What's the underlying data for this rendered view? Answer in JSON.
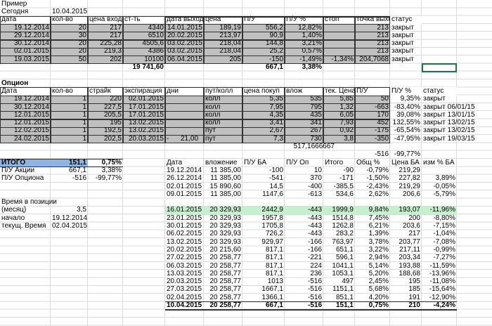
{
  "sheet": {
    "title": "Пример",
    "today_label": "Сегодня",
    "today": "10.04.2015",
    "stocks": {
      "headers": [
        "дата",
        "кол-во",
        "цена входа",
        "ст-ть",
        "дата выхода",
        "цена",
        "П/У",
        "П/У %",
        "стоп",
        "точка выхода",
        "статус"
      ],
      "rows": [
        [
          "19.12.2014",
          "20",
          "217",
          "4340",
          "14.01.2015",
          "189,19",
          "556,2",
          "12,82%",
          null,
          "213",
          "закрыт"
        ],
        [
          "29.12.2014",
          "30",
          "217",
          "6510",
          "20.02.2015",
          "213,97",
          "90,9",
          "1,40%",
          null,
          "213",
          "закрыт"
        ],
        [
          "30.12.2014",
          "20",
          "225,28",
          "4505,6",
          "03.02.2015",
          "218,04",
          "144,8",
          "3,21%",
          null,
          "213",
          "закрыт"
        ],
        [
          "02.01.2015",
          "20",
          "219,3",
          "4386",
          "03.02.2015",
          "218,04",
          "25,2",
          "0,57%",
          null,
          "213",
          "закрыт"
        ],
        [
          "19.03.2015",
          "50",
          "202",
          "10100",
          "06.04.2015",
          "205",
          "-150",
          "-1,49%",
          "-1,34%",
          "204,7068",
          "закрыт"
        ]
      ],
      "totals": {
        "cost": "19 741,60",
        "pl": "667,1",
        "pl_pct": "3,38%"
      }
    },
    "options": {
      "title": "Опцион",
      "headers": [
        "Дата",
        "кол-во",
        "страйк",
        "экспирация",
        "дни",
        "пут/колл",
        "цена покуп",
        "влож",
        "тек. Цена",
        "П/У",
        "П/У %",
        "статус"
      ],
      "rows": [
        [
          "19.12.2014",
          "1",
          "220",
          "02.01.2015",
          null,
          "колл",
          "5,35",
          "535",
          "5,85",
          "50",
          "9,35%",
          "закрыт"
        ],
        [
          "30.12.2014",
          "1",
          "227,5",
          "17.01.2015",
          null,
          "колл",
          "7,95",
          "795",
          "1,32",
          "-663",
          "-83,40%",
          "закрыт 06/01/15"
        ],
        [
          "12.01.2015",
          "1",
          "205,5",
          "17.01.2015",
          null,
          "колл",
          "4,35",
          "435",
          "6,05",
          "170",
          "39,08%",
          "закрыт 13/01/15"
        ],
        [
          "12.01.2015",
          "1",
          "195",
          "13.02.2015",
          null,
          "колл",
          "3,41",
          "341",
          "7,93",
          "452",
          "132,55%",
          "закрыт 13/02/15"
        ],
        [
          "12.02.2015",
          "1",
          "192,5",
          "13.02.2015",
          null,
          "пут",
          "2,67",
          "267",
          "0,92",
          "-175",
          "-65,54%",
          "закрыт 13/02/15"
        ],
        [
          "24.02.2015",
          "1",
          "202,5",
          "20.03.2015",
          "-      21,00",
          "пут",
          "7,3",
          "730",
          "3,8",
          "-350",
          "-47,95%",
          "закрыт 19/03/15"
        ]
      ],
      "totals": {
        "invest": "517,1666667",
        "pl": "-516",
        "pl_pct": "-99,77%"
      }
    },
    "summary": {
      "rows": [
        [
          "ИТОГО",
          "151,1",
          "0,75%"
        ],
        [
          "П/У Акции",
          "667,1",
          "3,38%"
        ],
        [
          "П/У Опциона",
          "-516",
          "-99,77%"
        ]
      ]
    },
    "position": {
      "label": "Время в позиции",
      "unit_label": "(месяц)",
      "value": "3,5",
      "start_label": "начало",
      "start": "19.12.2014",
      "current_label": "текущ. Время",
      "current": "02.04.2015"
    },
    "history": {
      "headers": [
        "Дата",
        "вложение",
        "П/У БА",
        "П/У Оп",
        "Итого",
        "Общ %",
        "Цена БА",
        "изм % БА"
      ],
      "rows": [
        [
          "19.12.2014",
          "11 385,00",
          "-100",
          "10",
          "-90",
          "-0,79%",
          "219,29",
          null
        ],
        [
          "26.12.2014",
          "11 385,00",
          "-541",
          "370",
          "-171",
          "-1,50%",
          "227,82",
          "3,89%"
        ],
        [
          "02.01.2015",
          "15 890,60",
          "14,5",
          "-400",
          "-385,5",
          "-2,43%",
          "219,29",
          "-0,05%"
        ],
        [
          "09.01.2015",
          "11 385,00",
          "1147,6",
          "-613",
          "534,6",
          "2,62%",
          "206,6",
          "-5,79%"
        ],
        [
          "16.01.2015",
          "20 329,93",
          "2442,9",
          "-443",
          "1999,9",
          "9,84%",
          "193,07",
          "-11,96%"
        ],
        [
          "23.01.2015",
          "20 329,93",
          "1957,8",
          "-443",
          "1514,8",
          "7,45%",
          "200",
          "-8,80%"
        ],
        [
          "30.01.2015",
          "20 329,93",
          "1705,8",
          "-443",
          "1262,8",
          "6,21%",
          "203,6",
          "-7,15%"
        ],
        [
          "06.02.2015",
          "20 329,93",
          "726,2",
          "-443",
          "283,2",
          "1,39%",
          "217",
          "-1,04%"
        ],
        [
          "13.02.2015",
          "20 329,93",
          "929,97",
          "-166",
          "763,97",
          "3,78%",
          "203,77",
          "-7,08%"
        ],
        [
          "20.02.2015",
          "20 215,60",
          "817,1",
          "-166",
          "651,1",
          "3,22%",
          "217,11",
          "-0,99%"
        ],
        [
          "27.02.2015",
          "20 258,77",
          "817,1",
          "-221",
          "596,1",
          "2,94%",
          "203,34",
          "-7,27%"
        ],
        [
          "06.03.2015",
          "20 258,77",
          "817,1",
          "224",
          "1041,1",
          "5,14%",
          "193,88",
          "-11,59%"
        ],
        [
          "13.03.2015",
          "20 258,77",
          "817,1",
          "236",
          "1053,1",
          "5,20%",
          "188,68",
          "-13,96%"
        ],
        [
          "20.03.2015",
          "20 258,77",
          "1013",
          "-516",
          "497",
          "2,45%",
          "195",
          "-11,08%"
        ],
        [
          "27.03.2015",
          "20 258,77",
          "1667,1",
          "-516",
          "1151,1",
          "5,68%",
          "185",
          "-15,64%"
        ],
        [
          "02.04.2015",
          "20 258,77",
          "1366,1",
          "-516",
          "851,1",
          "4,20%",
          "191",
          "-12,90%"
        ],
        [
          "10.04.2015",
          "20 258,77",
          "667,1",
          "-516",
          "151,1",
          "0,75%",
          "210",
          "-4,24%"
        ]
      ]
    }
  }
}
